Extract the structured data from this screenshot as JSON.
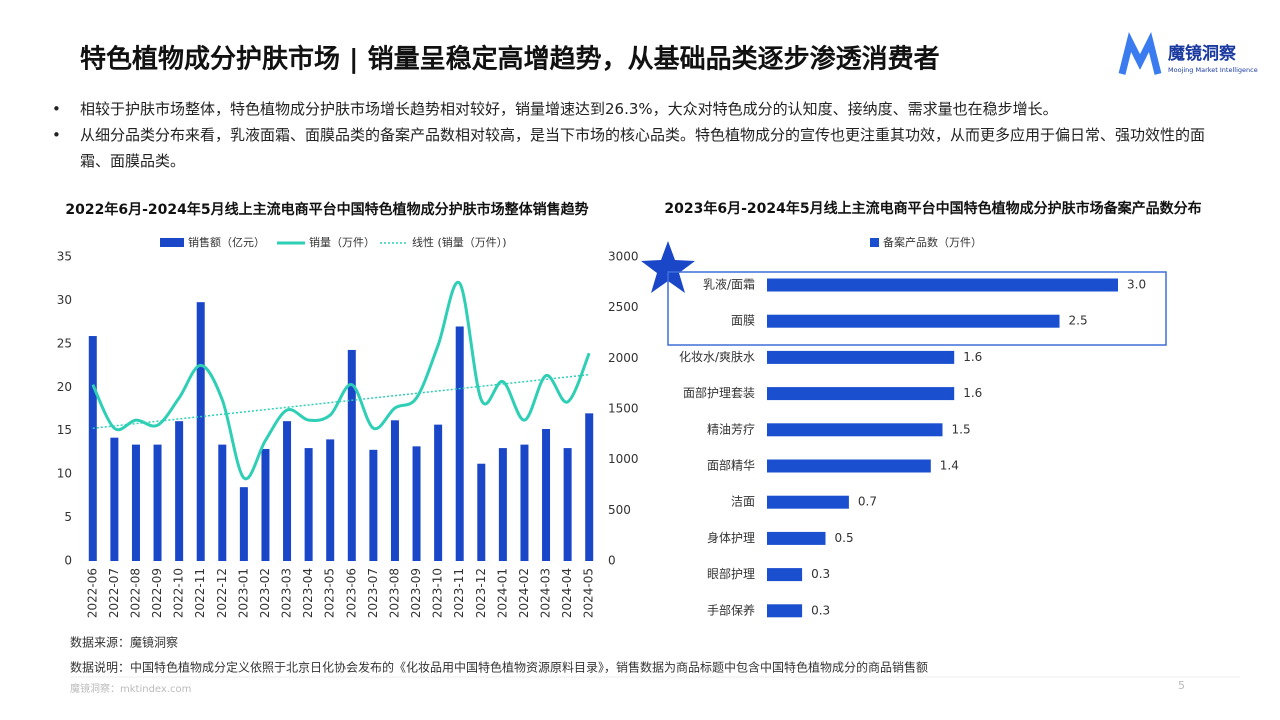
{
  "header": {
    "title": "特色植物成分护肤市场 | 销量呈稳定高增趋势，从基础品类逐步渗透消费者",
    "logo": "魔镜洞察",
    "logo_sub": "Moojing Market Intelligence"
  },
  "bullets": [
    "相较于护肤市场整体，特色植物成分护肤市场增长趋势相对较好，销量增速达到26.3%，大众对特色成分的认知度、接纳度、需求量也在稳步增长。",
    "从细分品类分布来看，乳液面霜、面膜品类的备案产品数相对较高，是当下市场的核心品类。特色植物成分的宣传也更注重其功效，从而更多应用于偏日常、强功效性的面霜、面膜品类。"
  ],
  "chart_data": [
    {
      "type": "bar_line",
      "title": "2022年6月-2024年5月线上主流电商平台中国特色植物成分护肤市场整体销售趋势",
      "categories": [
        "2022-06",
        "2022-07",
        "2022-08",
        "2022-09",
        "2022-10",
        "2022-11",
        "2022-12",
        "2023-01",
        "2023-02",
        "2023-03",
        "2023-04",
        "2023-05",
        "2023-06",
        "2023-07",
        "2023-08",
        "2023-09",
        "2023-10",
        "2023-11",
        "2023-12",
        "2024-01",
        "2024-02",
        "2024-03",
        "2024-04",
        "2024-05"
      ],
      "series": [
        {
          "name": "销售额（亿元）",
          "kind": "bar",
          "color": "#1a47c8",
          "values": [
            25.9,
            14.2,
            13.4,
            13.4,
            16.1,
            29.8,
            13.4,
            8.5,
            12.9,
            16.1,
            13,
            14,
            24.3,
            12.8,
            16.2,
            13.2,
            15.7,
            27,
            11.2,
            13,
            13.4,
            15.2,
            13,
            17
          ]
        },
        {
          "name": "销量（万件）",
          "kind": "line",
          "axis": "y2",
          "color": "#2ecfb5",
          "values": [
            1740,
            1310,
            1390,
            1340,
            1610,
            1930,
            1590,
            820,
            1190,
            1490,
            1390,
            1440,
            1740,
            1310,
            1510,
            1610,
            2130,
            2740,
            1590,
            1770,
            1390,
            1830,
            1570,
            2050
          ]
        },
        {
          "name": "线性 (销量（万件）)",
          "kind": "trend",
          "axis": "y2",
          "color": "#2ecfb5",
          "values": [
            1310,
            1333,
            1356,
            1379,
            1402,
            1425,
            1448,
            1471,
            1494,
            1517,
            1540,
            1563,
            1586,
            1609,
            1632,
            1655,
            1678,
            1701,
            1724,
            1747,
            1770,
            1793,
            1816,
            1839
          ]
        }
      ],
      "ylim": [
        0,
        35
      ],
      "yticks": [
        0,
        5,
        10,
        15,
        20,
        25,
        30,
        35
      ],
      "y2lim": [
        0,
        3000
      ],
      "y2ticks": [
        0,
        500,
        1000,
        1500,
        2000,
        2500,
        3000
      ]
    },
    {
      "type": "hbar",
      "title": "2023年6月-2024年5月线上主流电商平台中国特色植物成分护肤市场备案产品数分布",
      "categories": [
        "乳液/面霜",
        "面膜",
        "化妆水/爽肤水",
        "面部护理套装",
        "精油芳疗",
        "面部精华",
        "洁面",
        "身体护理",
        "眼部护理",
        "手部保养"
      ],
      "series": [
        {
          "name": "备案产品数（万件）",
          "color": "#1a4fd0",
          "values": [
            3.0,
            2.5,
            1.6,
            1.6,
            1.5,
            1.4,
            0.7,
            0.5,
            0.3,
            0.3
          ],
          "value_labels": [
            "3.0",
            "2.5",
            "1.6",
            "1.6",
            "1.5",
            "1.4",
            "0.7",
            "0.5",
            "0.3",
            "0.3"
          ]
        }
      ]
    }
  ],
  "footer": {
    "source": "数据来源：魔镜洞察",
    "note": "数据说明：中国特色植物成分定义依照于北京日化协会发布的《化妆品用中国特色植物资源原料目录》，销售数据为商品标题中包含中国特色植物成分的商品销售额",
    "site": "魔镜洞察：mktindex.com",
    "page": 5
  }
}
